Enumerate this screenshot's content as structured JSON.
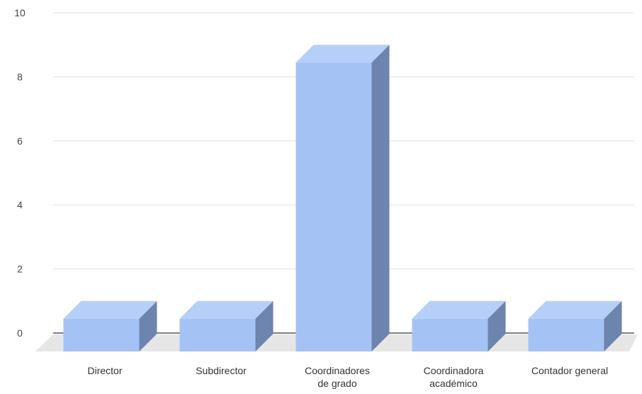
{
  "chart_data": {
    "type": "bar",
    "style": "3d",
    "title": "",
    "xlabel": "",
    "ylabel": "",
    "ylim": [
      0,
      10
    ],
    "yticks": [
      0,
      2,
      4,
      6,
      8,
      10
    ],
    "grid": true,
    "categories": [
      [
        "Director"
      ],
      [
        "Subdirector"
      ],
      [
        "Coordinadores",
        "de grado"
      ],
      [
        "Coordinadora",
        "académico"
      ],
      [
        "Contador general"
      ]
    ],
    "values": [
      1,
      1,
      9,
      1,
      1
    ]
  },
  "colors": {
    "bar_front": "#a4c2f4",
    "bar_top": "#b6cff7",
    "bar_side": "#6c84ae",
    "floor": "#e6e6e6",
    "gridline": "#e0e0e0",
    "axis": "#333333",
    "tick_text": "#444444"
  }
}
